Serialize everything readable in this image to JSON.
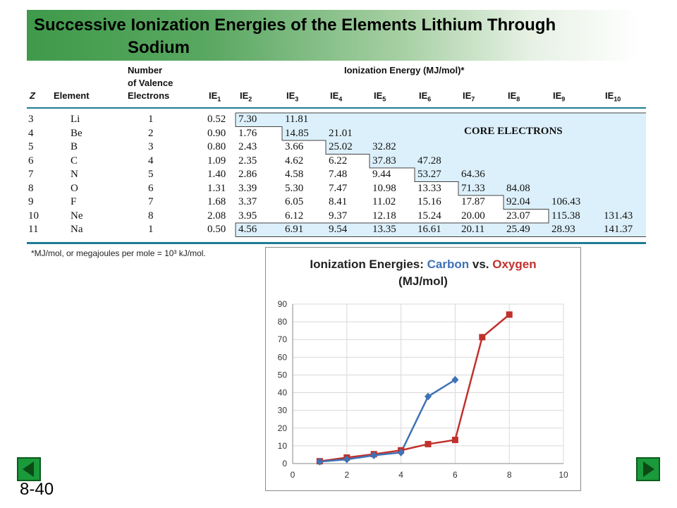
{
  "slide": {
    "title_line1": "Successive Ionization Energies of the Elements Lithium Through",
    "title_line2": "Sodium",
    "number": "8-40"
  },
  "table": {
    "headers": {
      "z": "Z",
      "element": "Element",
      "valence_line1": "Number",
      "valence_line2": "of Valence",
      "valence_line3": "Electrons",
      "ie_group": "Ionization Energy (MJ/mol)*",
      "ie_cols": [
        "IE1",
        "IE2",
        "IE3",
        "IE4",
        "IE5",
        "IE6",
        "IE7",
        "IE8",
        "IE9",
        "IE10"
      ]
    },
    "rows": [
      {
        "z": "3",
        "el": "Li",
        "val": "1",
        "ie": [
          "0.52",
          "7.30",
          "11.81",
          "",
          "",
          "",
          "",
          "",
          "",
          ""
        ]
      },
      {
        "z": "4",
        "el": "Be",
        "val": "2",
        "ie": [
          "0.90",
          "1.76",
          "14.85",
          "21.01",
          "",
          "",
          "",
          "",
          "",
          ""
        ]
      },
      {
        "z": "5",
        "el": "B",
        "val": "3",
        "ie": [
          "0.80",
          "2.43",
          "3.66",
          "25.02",
          "32.82",
          "",
          "",
          "",
          "",
          ""
        ]
      },
      {
        "z": "6",
        "el": "C",
        "val": "4",
        "ie": [
          "1.09",
          "2.35",
          "4.62",
          "6.22",
          "37.83",
          "47.28",
          "",
          "",
          "",
          ""
        ]
      },
      {
        "z": "7",
        "el": "N",
        "val": "5",
        "ie": [
          "1.40",
          "2.86",
          "4.58",
          "7.48",
          "9.44",
          "53.27",
          "64.36",
          "",
          "",
          ""
        ]
      },
      {
        "z": "8",
        "el": "O",
        "val": "6",
        "ie": [
          "1.31",
          "3.39",
          "5.30",
          "7.47",
          "10.98",
          "13.33",
          "71.33",
          "84.08",
          "",
          ""
        ]
      },
      {
        "z": "9",
        "el": "F",
        "val": "7",
        "ie": [
          "1.68",
          "3.37",
          "6.05",
          "8.41",
          "11.02",
          "15.16",
          "17.87",
          "92.04",
          "106.43",
          ""
        ]
      },
      {
        "z": "10",
        "el": "Ne",
        "val": "8",
        "ie": [
          "2.08",
          "3.95",
          "6.12",
          "9.37",
          "12.18",
          "15.24",
          "20.00",
          "23.07",
          "115.38",
          "131.43"
        ]
      },
      {
        "z": "11",
        "el": "Na",
        "val": "1",
        "ie": [
          "0.50",
          "4.56",
          "6.91",
          "9.54",
          "13.35",
          "16.61",
          "20.11",
          "25.49",
          "28.93",
          "141.37"
        ]
      }
    ],
    "core_label": "CORE ELECTRONS",
    "footnote": "*MJ/mol, or megajoules per mole = 10³ kJ/mol.",
    "core_color": "#dcf0fb",
    "rule_color": "#1f7b92"
  },
  "chart_data": {
    "type": "scatter",
    "title_prefix": "Ionization Energies: ",
    "title_carbon": "Carbon",
    "title_vs": " vs. ",
    "title_oxygen": "Oxygen",
    "title_units": "(MJ/mol)",
    "xlim": [
      0,
      10
    ],
    "ylim": [
      0,
      90
    ],
    "xticks": [
      0,
      2,
      4,
      6,
      8,
      10
    ],
    "yticks": [
      0,
      10,
      20,
      30,
      40,
      50,
      60,
      70,
      80,
      90
    ],
    "grid": true,
    "series": [
      {
        "name": "Carbon",
        "color": "#3f72b5",
        "marker": "diamond",
        "x": [
          1,
          2,
          3,
          4,
          5,
          6
        ],
        "y": [
          1.09,
          2.35,
          4.62,
          6.22,
          37.83,
          47.28
        ]
      },
      {
        "name": "Oxygen",
        "color": "#c0312d",
        "marker": "square",
        "x": [
          1,
          2,
          3,
          4,
          5,
          6,
          7,
          8
        ],
        "y": [
          1.31,
          3.39,
          5.3,
          7.47,
          10.98,
          13.33,
          71.33,
          84.08
        ]
      }
    ]
  },
  "nav": {
    "prev_icon": "triangle-left-icon",
    "next_icon": "triangle-right-icon",
    "button_color": "#1a9a3a"
  }
}
